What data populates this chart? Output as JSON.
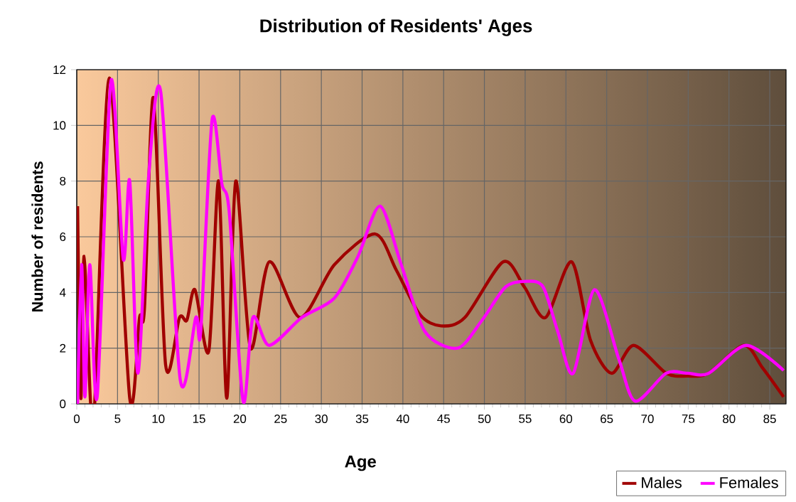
{
  "chart_data": {
    "type": "line",
    "title": "Distribution of Residents' Ages",
    "xlabel": "Age",
    "ylabel": "Number of residents",
    "xlim": [
      0,
      87
    ],
    "xticks": [
      0,
      5,
      10,
      15,
      20,
      25,
      30,
      35,
      40,
      45,
      50,
      55,
      60,
      65,
      70,
      75,
      80,
      85
    ],
    "ylim": [
      0,
      12
    ],
    "yticks": [
      0,
      2,
      4,
      6,
      8,
      10,
      12
    ],
    "grid": true,
    "legend": "bottom right",
    "marker": "none",
    "line_style": "solid",
    "series": [
      {
        "name": "Males",
        "color": "#a00000",
        "x": [
          0.1,
          0.5,
          0.9,
          1.7,
          2.2,
          4.0,
          6.5,
          7.7,
          8.3,
          9.4,
          10.9,
          12.6,
          13.5,
          14.5,
          16.2,
          17.4,
          18.4,
          19.5,
          21.3,
          23.6,
          27.4,
          31.6,
          36.6,
          39.2,
          42.1,
          44.7,
          47.6,
          52.3,
          54.9,
          57.5,
          60.7,
          63.0,
          65.6,
          68.3,
          72.3,
          74.9,
          77.5,
          81.8,
          84.1,
          86.7
        ],
        "values": [
          7.1,
          0.2,
          5.3,
          0,
          0,
          11.7,
          0.2,
          3.1,
          3.4,
          11.0,
          1.4,
          3.1,
          3.0,
          4.1,
          1.9,
          8.0,
          0.2,
          8.0,
          2.0,
          5.1,
          3.1,
          5.0,
          6.1,
          4.8,
          3.2,
          2.8,
          3.1,
          5.1,
          4.2,
          3.1,
          5.1,
          2.3,
          1.1,
          2.1,
          1.1,
          1.0,
          1.1,
          2.1,
          1.3,
          0.25
        ]
      },
      {
        "name": "Females",
        "color": "#ff00ff",
        "x": [
          0.1,
          0.6,
          1.0,
          1.6,
          2.5,
          4.2,
          5.7,
          6.5,
          7.5,
          8.8,
          10.3,
          12.7,
          14.6,
          15.2,
          16.6,
          17.8,
          18.7,
          20.4,
          21.6,
          23.6,
          27.6,
          31.6,
          34.5,
          37.2,
          39.8,
          42.7,
          46.7,
          49.7,
          52.6,
          55.2,
          57.2,
          59.0,
          60.9,
          63.5,
          66.5,
          68.5,
          72.3,
          74.9,
          77.5,
          82.1,
          86.7
        ],
        "values": [
          0,
          5.0,
          0.25,
          5.0,
          0.25,
          11.6,
          5.2,
          8.0,
          1.1,
          8.1,
          11.2,
          0.85,
          3.1,
          2.6,
          10.2,
          7.9,
          6.9,
          0.1,
          3.1,
          2.1,
          3.1,
          3.8,
          5.3,
          7.1,
          5.0,
          2.6,
          2.0,
          3.0,
          4.2,
          4.4,
          4.2,
          2.6,
          1.1,
          4.1,
          1.6,
          0.1,
          1.1,
          1.1,
          1.1,
          2.1,
          1.2
        ]
      }
    ]
  }
}
